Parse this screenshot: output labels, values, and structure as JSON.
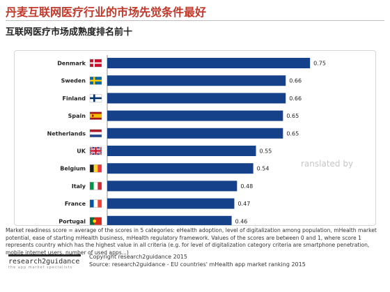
{
  "header": {
    "title": "丹麦互联网医疗行业的市场先觉条件最好",
    "subtitle": "互联网医疗市场成熟度排名前十"
  },
  "chart_data": {
    "type": "bar",
    "orientation": "horizontal",
    "categories": [
      "Denmark",
      "Sweden",
      "Finland",
      "Spain",
      "Netherlands",
      "UK",
      "Belgium",
      "Italy",
      "France",
      "Portugal"
    ],
    "values": [
      0.75,
      0.66,
      0.66,
      0.65,
      0.65,
      0.55,
      0.54,
      0.48,
      0.47,
      0.46
    ],
    "value_labels": [
      "0.75",
      "0.66",
      "0.66",
      "0.65",
      "0.65",
      "0.55",
      "0.54",
      "0.48",
      "0.47",
      "0.46"
    ],
    "xlim": [
      0,
      0.85
    ],
    "bar_color": "#15408a",
    "grid": false,
    "legend": false,
    "flag_icons": [
      "denmark-flag-icon",
      "sweden-flag-icon",
      "finland-flag-icon",
      "spain-flag-icon",
      "netherlands-flag-icon",
      "uk-flag-icon",
      "belgium-flag-icon",
      "italy-flag-icon",
      "france-flag-icon",
      "portugal-flag-icon"
    ]
  },
  "watermark": "ranslated by",
  "footnote": "Market readiness score = average of the scores in 5 categories: eHealth adoption, level of digitalization among population, mHealth market potential, ease of starting mHealth business, mHealth regulatory framework. Values of the scores are between 0 and 1, where score 1 represents country which has the highest value in all criteria (e.g. for level of digitalization category criteria are smartphone penetration, mobile internet users, number of used apps...)",
  "logo": {
    "text": "research2guidance",
    "tagline": "the app market specialists"
  },
  "copyright": "Copyright research2guidance 2015",
  "source": "Source: research2guidance - EU countries' mHealth app market ranking 2015"
}
